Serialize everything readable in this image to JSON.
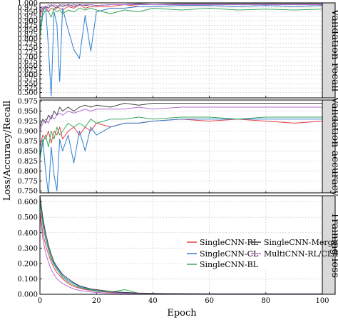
{
  "figure": {
    "y_axis_label": "Loss/Accuracy/Recall",
    "x_axis_label": "Epoch",
    "x_ticks": [
      "0",
      "20",
      "40",
      "60",
      "80",
      "100"
    ]
  },
  "legend": {
    "entries": [
      {
        "label": "SingleCNN-RL",
        "color": "#e8404a"
      },
      {
        "label": "SingleCNN-MergeRGB",
        "color": "#404040"
      },
      {
        "label": "SingleCNN-CL",
        "color": "#2f7fd1"
      },
      {
        "label": "MultiCNN-RL/CL/BL",
        "color": "#b46fd6"
      },
      {
        "label": "SingleCNN-BL",
        "color": "#3aaa5a"
      }
    ]
  },
  "chart_data": [
    {
      "type": "line",
      "side_title": "Validation recall",
      "ylim": [
        0.47,
        1.0
      ],
      "y_ticks": [
        "1.000",
        "0.975",
        "0.950",
        "0.925",
        "0.900",
        "0.875",
        "0.850",
        "0.825",
        "0.800",
        "0.775",
        "0.750",
        "0.725",
        "0.700",
        "0.675",
        "0.650",
        "0.625",
        "0.600",
        "0.575",
        "0.550",
        "0.525",
        "0.500"
      ],
      "x": [
        0,
        1,
        2,
        3,
        4,
        5,
        6,
        7,
        8,
        10,
        12,
        14,
        16,
        18,
        20,
        25,
        30,
        35,
        40,
        50,
        60,
        70,
        80,
        90,
        100
      ],
      "series": [
        {
          "name": "SingleCNN-RL",
          "color": "#e8404a",
          "values": [
            0.93,
            0.96,
            0.98,
            0.95,
            0.97,
            0.96,
            0.98,
            0.97,
            0.96,
            0.98,
            0.97,
            0.99,
            0.97,
            0.98,
            0.98,
            0.98,
            0.99,
            0.98,
            0.98,
            0.985,
            0.985,
            0.98,
            0.985,
            0.98,
            0.985
          ]
        },
        {
          "name": "SingleCNN-CL",
          "color": "#2f7fd1",
          "values": [
            0.85,
            0.95,
            0.98,
            0.75,
            0.48,
            0.95,
            0.88,
            0.56,
            0.97,
            0.85,
            0.74,
            0.69,
            0.93,
            0.73,
            0.95,
            0.97,
            0.97,
            0.98,
            0.98,
            0.985,
            0.985,
            0.98,
            0.985,
            0.98,
            0.985
          ]
        },
        {
          "name": "SingleCNN-BL",
          "color": "#3aaa5a",
          "values": [
            0.81,
            0.93,
            0.96,
            0.95,
            0.92,
            0.97,
            0.95,
            0.96,
            0.94,
            0.96,
            0.95,
            0.97,
            0.96,
            0.97,
            0.96,
            0.94,
            0.96,
            0.95,
            0.97,
            0.96,
            0.97,
            0.96,
            0.965,
            0.96,
            0.965
          ]
        },
        {
          "name": "SingleCNN-MergeRGB",
          "color": "#404040",
          "values": [
            0.95,
            0.97,
            0.98,
            0.97,
            0.99,
            0.98,
            0.97,
            0.99,
            0.98,
            0.99,
            0.98,
            0.99,
            0.985,
            0.99,
            0.985,
            0.99,
            0.99,
            0.995,
            0.99,
            0.995,
            0.995,
            0.995,
            0.995,
            0.995,
            0.995
          ]
        },
        {
          "name": "MultiCNN-RL/CL/BL",
          "color": "#b46fd6",
          "values": [
            0.96,
            0.98,
            0.97,
            0.99,
            0.98,
            0.99,
            0.985,
            0.98,
            0.99,
            0.985,
            0.99,
            0.985,
            0.99,
            0.99,
            0.985,
            0.99,
            0.99,
            0.99,
            0.99,
            0.99,
            0.99,
            0.99,
            0.99,
            0.99,
            0.99
          ]
        }
      ]
    },
    {
      "type": "line",
      "side_title": "Validation accuracy",
      "ylim": [
        0.745,
        0.978
      ],
      "y_ticks": [
        "0.975",
        "0.950",
        "0.925",
        "0.900",
        "0.875",
        "0.850",
        "0.825",
        "0.800",
        "0.775",
        "0.750"
      ],
      "x": [
        0,
        1,
        2,
        3,
        4,
        5,
        6,
        7,
        8,
        10,
        12,
        14,
        16,
        18,
        20,
        25,
        30,
        35,
        40,
        50,
        60,
        70,
        80,
        90,
        100
      ],
      "series": [
        {
          "name": "SingleCNN-RL",
          "color": "#e8404a",
          "values": [
            0.86,
            0.89,
            0.88,
            0.9,
            0.87,
            0.9,
            0.89,
            0.91,
            0.88,
            0.9,
            0.91,
            0.89,
            0.91,
            0.9,
            0.92,
            0.91,
            0.92,
            0.92,
            0.925,
            0.93,
            0.925,
            0.93,
            0.925,
            0.92,
            0.925
          ]
        },
        {
          "name": "SingleCNN-CL",
          "color": "#2f7fd1",
          "values": [
            0.84,
            0.88,
            0.8,
            0.74,
            0.86,
            0.79,
            0.75,
            0.88,
            0.85,
            0.89,
            0.82,
            0.9,
            0.85,
            0.91,
            0.89,
            0.91,
            0.92,
            0.92,
            0.925,
            0.93,
            0.93,
            0.93,
            0.93,
            0.93,
            0.93
          ]
        },
        {
          "name": "SingleCNN-BL",
          "color": "#3aaa5a",
          "values": [
            0.83,
            0.87,
            0.89,
            0.86,
            0.9,
            0.88,
            0.91,
            0.89,
            0.9,
            0.92,
            0.91,
            0.92,
            0.91,
            0.93,
            0.92,
            0.93,
            0.93,
            0.935,
            0.93,
            0.935,
            0.935,
            0.93,
            0.935,
            0.935,
            0.935
          ]
        },
        {
          "name": "SingleCNN-MergeRGB",
          "color": "#404040",
          "values": [
            0.91,
            0.93,
            0.92,
            0.94,
            0.93,
            0.95,
            0.94,
            0.96,
            0.95,
            0.96,
            0.95,
            0.96,
            0.965,
            0.96,
            0.965,
            0.96,
            0.97,
            0.965,
            0.97,
            0.97,
            0.97,
            0.97,
            0.97,
            0.97,
            0.97
          ]
        },
        {
          "name": "MultiCNN-RL/CL/BL",
          "color": "#b46fd6",
          "values": [
            0.9,
            0.92,
            0.93,
            0.92,
            0.94,
            0.93,
            0.94,
            0.945,
            0.94,
            0.95,
            0.945,
            0.95,
            0.955,
            0.95,
            0.955,
            0.955,
            0.955,
            0.96,
            0.955,
            0.96,
            0.96,
            0.96,
            0.96,
            0.96,
            0.96
          ]
        }
      ]
    },
    {
      "type": "line",
      "side_title": "Training loss",
      "ylim": [
        0.0,
        0.64
      ],
      "y_ticks": [
        "0.600",
        "0.500",
        "0.400",
        "0.300",
        "0.200",
        "0.100",
        "0.000"
      ],
      "x": [
        0,
        1,
        2,
        3,
        4,
        5,
        6,
        8,
        10,
        12,
        14,
        16,
        18,
        20,
        25,
        30,
        35,
        40,
        50,
        60,
        70,
        80,
        90,
        100
      ],
      "series": [
        {
          "name": "SingleCNN-RL",
          "color": "#e8404a",
          "values": [
            0.54,
            0.4,
            0.32,
            0.26,
            0.21,
            0.17,
            0.14,
            0.1,
            0.07,
            0.05,
            0.04,
            0.03,
            0.025,
            0.02,
            0.012,
            0.008,
            0.005,
            0.004,
            0.003,
            0.002,
            0.002,
            0.002,
            0.002,
            0.002
          ]
        },
        {
          "name": "SingleCNN-CL",
          "color": "#2f7fd1",
          "values": [
            0.62,
            0.47,
            0.37,
            0.3,
            0.24,
            0.2,
            0.17,
            0.12,
            0.09,
            0.07,
            0.05,
            0.04,
            0.03,
            0.025,
            0.015,
            0.01,
            0.007,
            0.005,
            0.004,
            0.003,
            0.003,
            0.003,
            0.003,
            0.003
          ]
        },
        {
          "name": "SingleCNN-BL",
          "color": "#3aaa5a",
          "values": [
            0.6,
            0.45,
            0.36,
            0.29,
            0.23,
            0.19,
            0.16,
            0.11,
            0.08,
            0.06,
            0.045,
            0.035,
            0.028,
            0.022,
            0.014,
            0.03,
            0.006,
            0.004,
            0.003,
            0.002,
            0.002,
            0.002,
            0.002,
            0.002
          ]
        },
        {
          "name": "SingleCNN-MergeRGB",
          "color": "#404040",
          "values": [
            0.64,
            0.5,
            0.4,
            0.32,
            0.26,
            0.21,
            0.18,
            0.13,
            0.1,
            0.075,
            0.055,
            0.045,
            0.035,
            0.03,
            0.018,
            0.012,
            0.008,
            0.006,
            0.004,
            0.003,
            0.003,
            0.003,
            0.003,
            0.003
          ]
        },
        {
          "name": "MultiCNN-RL/CL/BL",
          "color": "#b46fd6",
          "values": [
            0.51,
            0.36,
            0.27,
            0.21,
            0.16,
            0.13,
            0.1,
            0.07,
            0.05,
            0.035,
            0.025,
            0.02,
            0.015,
            0.012,
            0.007,
            0.005,
            0.003,
            0.002,
            0.002,
            0.001,
            0.001,
            0.001,
            0.001,
            0.001
          ]
        }
      ]
    }
  ]
}
